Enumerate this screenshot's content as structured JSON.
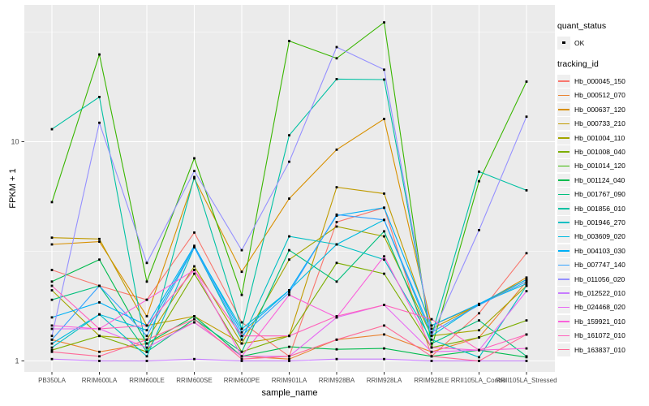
{
  "axes": {
    "x_title": "sample_name",
    "y_title": "FPKM + 1",
    "y_ticks": [
      {
        "label": "1",
        "value": 1
      },
      {
        "label": "10",
        "value": 10
      }
    ]
  },
  "legend": {
    "quant_status_title": "quant_status",
    "quant_status_items": [
      {
        "label": "OK",
        "symbol": "black-point"
      }
    ],
    "tracking_id_title": "tracking_id"
  },
  "colors": {
    "panel_bg": "#EBEBEB",
    "grid": "#FFFFFF",
    "tick_text": "#4D4D4D",
    "tick_mark": "#333333",
    "point": "#000000",
    "legend_key_bg": "#EFEFEF"
  },
  "chart_data": {
    "type": "line",
    "y_scale": "log10",
    "ylim": [
      0.89,
      42
    ],
    "grid": "white major and minor on gray panel",
    "legend_position": "right",
    "point_marker": "small black square at every data point",
    "x_categories": [
      "PB350LA",
      "RRIM600LA",
      "RRIM600LE",
      "RRIM600SE",
      "RRIM600PE",
      "RRIM901LA",
      "RRIM928BA",
      "RRIM928LA",
      "RRIM928LE",
      "RRII105LA_Control",
      "RRII105LA_Stressed"
    ],
    "series": [
      {
        "name": "Hb_000045_150",
        "color": "#F8766D",
        "values": [
          2.6,
          2.2,
          1.9,
          3.85,
          1.5,
          1.05,
          4.3,
          5.0,
          1.05,
          1.65,
          3.1
        ]
      },
      {
        "name": "Hb_000512_070",
        "color": "#EA8331",
        "values": [
          1.25,
          1.1,
          1.2,
          1.5,
          1.05,
          1.02,
          1.25,
          1.32,
          1.1,
          1.28,
          2.3
        ]
      },
      {
        "name": "Hb_000637_120",
        "color": "#D89000",
        "values": [
          3.4,
          3.5,
          1.6,
          6.8,
          2.55,
          5.5,
          9.2,
          12.7,
          1.45,
          1.8,
          2.4
        ]
      },
      {
        "name": "Hb_000733_210",
        "color": "#C09B00",
        "values": [
          3.65,
          3.6,
          1.45,
          1.6,
          1.2,
          1.3,
          6.2,
          5.8,
          1.4,
          1.8,
          2.35
        ]
      },
      {
        "name": "Hb_001004_110",
        "color": "#A3A500",
        "values": [
          2.1,
          1.3,
          1.25,
          2.7,
          1.2,
          2.9,
          4.1,
          3.7,
          1.3,
          1.38,
          2.2
        ]
      },
      {
        "name": "Hb_001008_040",
        "color": "#7CAE00",
        "values": [
          1.12,
          1.3,
          1.1,
          2.5,
          1.1,
          1.3,
          2.8,
          2.5,
          1.15,
          1.28,
          1.53
        ]
      },
      {
        "name": "Hb_001014_120",
        "color": "#39B600",
        "values": [
          5.3,
          25.0,
          2.3,
          8.4,
          2.0,
          28.8,
          24.0,
          35.0,
          1.15,
          6.6,
          18.8
        ]
      },
      {
        "name": "Hb_001124_040",
        "color": "#00BB4E",
        "values": [
          2.3,
          2.9,
          1.2,
          1.6,
          1.05,
          1.16,
          1.13,
          1.14,
          1.05,
          1.12,
          1.04
        ]
      },
      {
        "name": "Hb_001767_090",
        "color": "#00BF7D",
        "values": [
          1.9,
          2.2,
          1.1,
          1.55,
          1.1,
          3.2,
          2.3,
          3.9,
          1.2,
          1.53,
          1.05
        ]
      },
      {
        "name": "Hb_001856_010",
        "color": "#00C1A3",
        "values": [
          11.4,
          16.0,
          1.1,
          6.9,
          1.4,
          10.7,
          19.3,
          19.2,
          1.3,
          7.3,
          6.0
        ]
      },
      {
        "name": "Hb_001946_270",
        "color": "#00BFC4",
        "values": [
          1.15,
          1.63,
          1.05,
          3.3,
          1.25,
          3.7,
          3.4,
          2.9,
          1.25,
          1.04,
          2.2
        ]
      },
      {
        "name": "Hb_003609_020",
        "color": "#00BAE0",
        "values": [
          1.2,
          1.63,
          1.38,
          3.3,
          1.4,
          2.1,
          3.4,
          4.4,
          1.3,
          1.82,
          2.25
        ]
      },
      {
        "name": "Hb_004103_030",
        "color": "#00B0F6",
        "values": [
          1.58,
          1.85,
          1.45,
          3.35,
          1.35,
          2.1,
          4.6,
          5.0,
          1.45,
          1.82,
          2.35
        ]
      },
      {
        "name": "Hb_007747_140",
        "color": "#35A2FF",
        "values": [
          1.25,
          2.2,
          1.3,
          3.3,
          1.3,
          2.05,
          4.65,
          4.4,
          1.35,
          1.8,
          2.3
        ]
      },
      {
        "name": "Hb_011056_020",
        "color": "#9590FF",
        "values": [
          1.3,
          12.2,
          2.8,
          7.35,
          3.2,
          8.1,
          27.0,
          21.3,
          1.3,
          3.95,
          13.0
        ]
      },
      {
        "name": "Hb_012522_010",
        "color": "#C77CFF",
        "values": [
          1.02,
          1.0,
          1.0,
          1.02,
          1.0,
          1.0,
          1.02,
          1.02,
          1.0,
          1.0,
          1.0
        ]
      },
      {
        "name": "Hb_024468_020",
        "color": "#E76BF3",
        "values": [
          1.4,
          1.4,
          1.15,
          1.5,
          1.05,
          1.05,
          1.58,
          1.8,
          1.1,
          1.12,
          2.08
        ]
      },
      {
        "name": "Hb_159921_010",
        "color": "#FA62DB",
        "values": [
          1.45,
          1.4,
          1.9,
          2.6,
          1.05,
          2.0,
          1.58,
          3.0,
          1.15,
          1.12,
          1.14
        ]
      },
      {
        "name": "Hb_161072_010",
        "color": "#FF62BC",
        "values": [
          2.2,
          1.4,
          1.45,
          2.6,
          1.3,
          1.3,
          1.6,
          1.8,
          1.55,
          1.12,
          1.32
        ]
      },
      {
        "name": "Hb_163837_010",
        "color": "#FF6A98",
        "values": [
          1.1,
          1.05,
          1.25,
          1.55,
          1.02,
          1.05,
          1.25,
          1.45,
          1.05,
          1.0,
          1.32
        ]
      }
    ]
  }
}
